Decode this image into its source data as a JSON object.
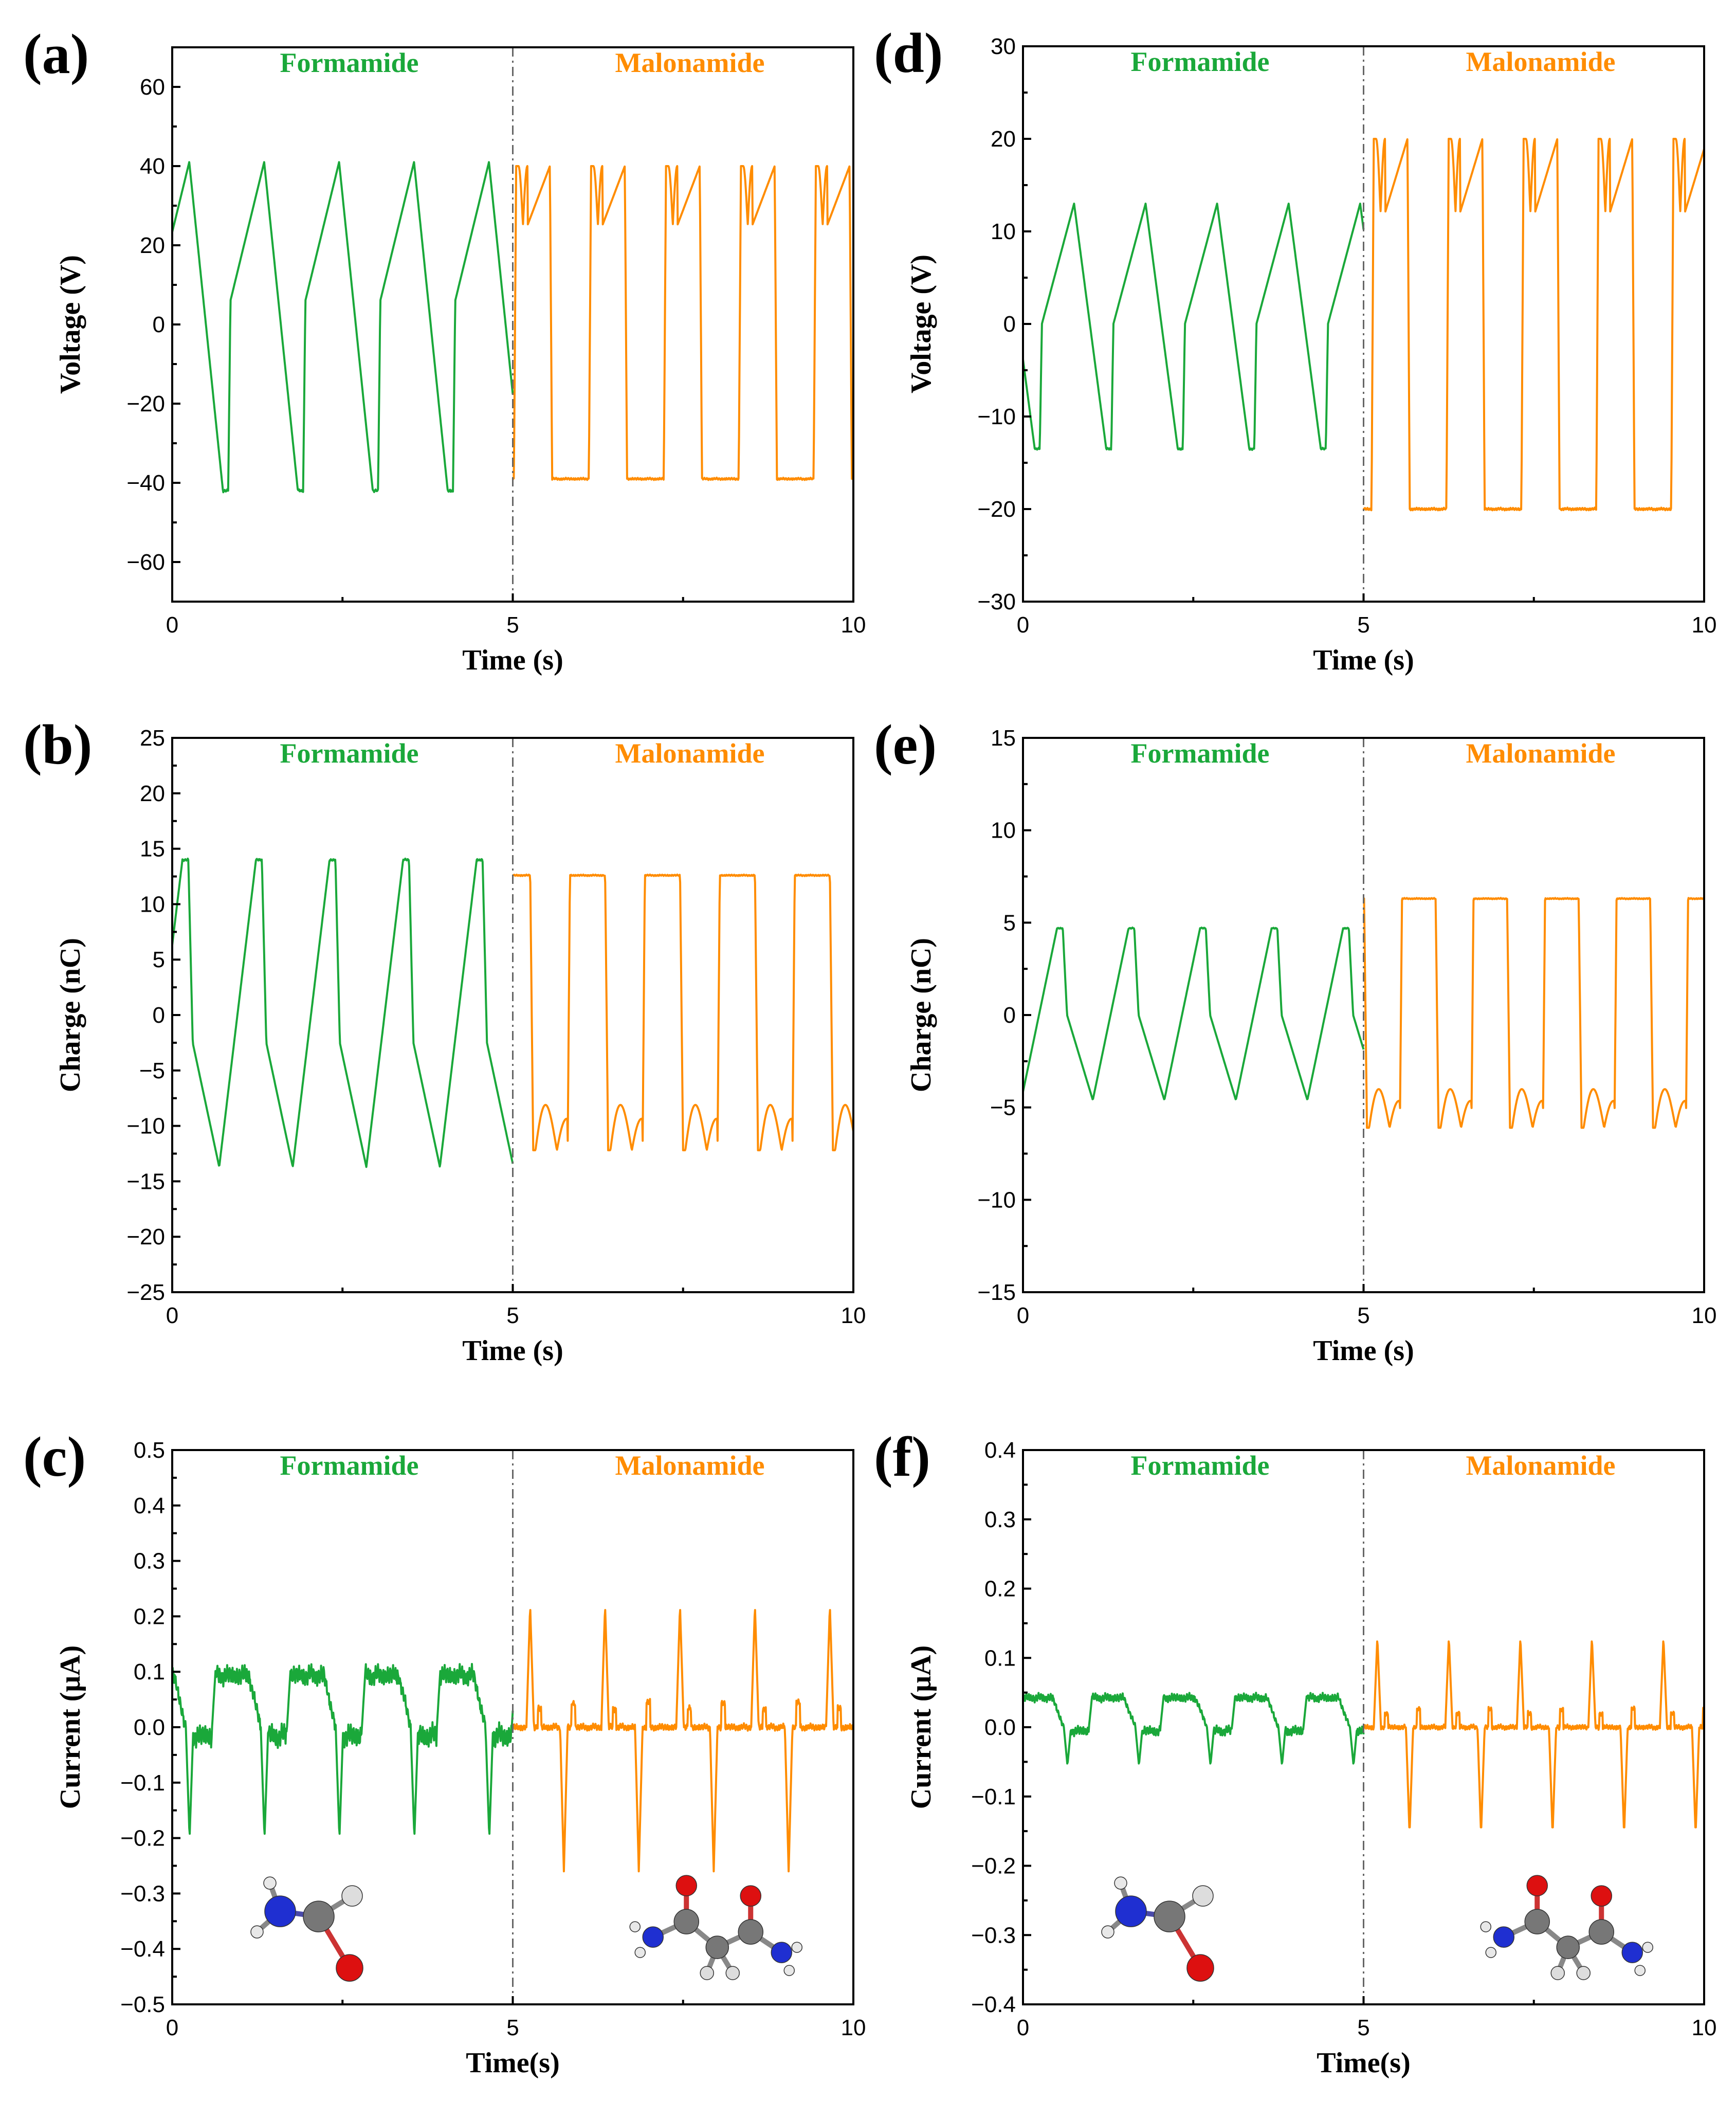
{
  "colors": {
    "formamide": "#1aa83a",
    "malonamide": "#ff8c00",
    "text": "#000000"
  },
  "chart_data": [
    {
      "type": "line",
      "panel": "(a)",
      "xlabel": "Time (s)",
      "ylabel": "Voltage (V)",
      "xlim": [
        0,
        10
      ],
      "ylim": [
        -70,
        70
      ],
      "xticks": [
        0,
        5,
        10
      ],
      "yticks": [
        -60,
        -40,
        -20,
        0,
        20,
        40,
        60
      ],
      "ytick_labels": [
        "−60",
        "−40",
        "−20",
        "0",
        "20",
        "40",
        "60"
      ],
      "divider_x": 5,
      "region_labels": [
        "Formamide",
        "Malonamide"
      ],
      "series": [
        {
          "name": "Formamide",
          "color": "formamide",
          "shape": "sawtooth",
          "x_range": [
            0,
            5
          ],
          "period": 1.1,
          "phase": 0.25,
          "high": 41,
          "low": -42,
          "step": 6
        },
        {
          "name": "Malonamide",
          "color": "malonamide",
          "shape": "square",
          "x_range": [
            5,
            10
          ],
          "period": 1.1,
          "phase": 5.05,
          "high": 40,
          "low": -39,
          "dip": 25
        }
      ]
    },
    {
      "type": "line",
      "panel": "(b)",
      "xlabel": "Time (s)",
      "ylabel": "Charge (nC)",
      "xlim": [
        0,
        10
      ],
      "ylim": [
        -25,
        25
      ],
      "xticks": [
        0,
        5,
        10
      ],
      "yticks": [
        -25,
        -20,
        -15,
        -10,
        -5,
        0,
        5,
        10,
        15,
        20,
        25
      ],
      "ytick_labels": [
        "−25",
        "−20",
        "−15",
        "−10",
        "−5",
        "0",
        "5",
        "10",
        "15",
        "20",
        "25"
      ],
      "divider_x": 5,
      "region_labels": [
        "Formamide",
        "Malonamide"
      ],
      "series": [
        {
          "name": "Formamide",
          "color": "formamide",
          "shape": "sawtooth-inv",
          "x_range": [
            0,
            5
          ],
          "period": 1.08,
          "phase": 0.15,
          "high": 14,
          "low": -13.7,
          "step": -2.5
        },
        {
          "name": "Malonamide",
          "color": "malonamide",
          "shape": "square-inv",
          "x_range": [
            5,
            10
          ],
          "period": 1.1,
          "phase": 5.3,
          "high": 12.6,
          "low": -12.2,
          "dip": -7.5
        }
      ]
    },
    {
      "type": "line",
      "panel": "(c)",
      "xlabel": "Time(s)",
      "ylabel": "Current (μA)",
      "xlim": [
        0,
        10
      ],
      "ylim": [
        -0.5,
        0.5
      ],
      "xticks": [
        0,
        5,
        10
      ],
      "yticks": [
        -0.5,
        -0.4,
        -0.3,
        -0.2,
        -0.1,
        0.0,
        0.1,
        0.2,
        0.3,
        0.4,
        0.5
      ],
      "ytick_labels": [
        "−0.5",
        "−0.4",
        "−0.3",
        "−0.2",
        "−0.1",
        "0.0",
        "0.1",
        "0.2",
        "0.3",
        "0.4",
        "0.5"
      ],
      "divider_x": 5,
      "region_labels": [
        "Formamide",
        "Malonamide"
      ],
      "molecules": [
        "formamide",
        "malonamide"
      ],
      "series": [
        {
          "name": "Formamide",
          "color": "formamide",
          "shape": "current-f",
          "x_range": [
            0,
            5
          ],
          "period": 1.1,
          "phase": 0.2,
          "high": 0.11,
          "low": -0.2
        },
        {
          "name": "Malonamide",
          "color": "malonamide",
          "shape": "current-m",
          "x_range": [
            5,
            10
          ],
          "period": 1.1,
          "phase": 5.2,
          "high": 0.22,
          "low": -0.26
        }
      ]
    },
    {
      "type": "line",
      "panel": "(d)",
      "xlabel": "Time (s)",
      "ylabel": "Voltage (V)",
      "xlim": [
        0,
        10
      ],
      "ylim": [
        -30,
        30
      ],
      "xticks": [
        0,
        5,
        10
      ],
      "yticks": [
        -30,
        -20,
        -10,
        0,
        10,
        20,
        30
      ],
      "ytick_labels": [
        "−30",
        "−20",
        "−10",
        "0",
        "10",
        "20",
        "30"
      ],
      "divider_x": 5,
      "region_labels": [
        "Formamide",
        "Malonamide"
      ],
      "series": [
        {
          "name": "Formamide",
          "color": "formamide",
          "shape": "sawtooth",
          "x_range": [
            0,
            5
          ],
          "period": 1.05,
          "phase": 0.75,
          "high": 13,
          "low": -13.5,
          "step": 0
        },
        {
          "name": "Malonamide",
          "color": "malonamide",
          "shape": "square",
          "x_range": [
            5,
            10
          ],
          "period": 1.1,
          "phase": 5.15,
          "high": 20,
          "low": -20,
          "dip": 12
        }
      ]
    },
    {
      "type": "line",
      "panel": "(e)",
      "xlabel": "Time (s)",
      "ylabel": "Charge (nC)",
      "xlim": [
        0,
        10
      ],
      "ylim": [
        -15,
        15
      ],
      "xticks": [
        0,
        5,
        10
      ],
      "yticks": [
        -15,
        -10,
        -5,
        0,
        5,
        10,
        15
      ],
      "ytick_labels": [
        "−15",
        "−10",
        "−5",
        "0",
        "5",
        "10",
        "15"
      ],
      "divider_x": 5,
      "region_labels": [
        "Formamide",
        "Malonamide"
      ],
      "series": [
        {
          "name": "Formamide",
          "color": "formamide",
          "shape": "sawtooth-inv",
          "x_range": [
            0,
            5
          ],
          "period": 1.05,
          "phase": 0.5,
          "high": 4.7,
          "low": -4.6,
          "step": 0
        },
        {
          "name": "Malonamide",
          "color": "malonamide",
          "shape": "square-inv",
          "x_range": [
            5,
            10
          ],
          "period": 1.05,
          "phase": 5.05,
          "high": 6.3,
          "low": -6.1,
          "dip": -3.7
        }
      ]
    },
    {
      "type": "line",
      "panel": "(f)",
      "xlabel": "Time(s)",
      "ylabel": "Current (μA)",
      "xlim": [
        0,
        10
      ],
      "ylim": [
        -0.4,
        0.4
      ],
      "xticks": [
        0,
        5,
        10
      ],
      "yticks": [
        -0.4,
        -0.3,
        -0.2,
        -0.1,
        0.0,
        0.1,
        0.2,
        0.3,
        0.4
      ],
      "ytick_labels": [
        "−0.4",
        "−0.3",
        "−0.2",
        "−0.1",
        "0.0",
        "0.1",
        "0.2",
        "0.3",
        "0.4"
      ],
      "divider_x": 5,
      "region_labels": [
        "Formamide",
        "Malonamide"
      ],
      "molecules": [
        "formamide",
        "malonamide"
      ],
      "series": [
        {
          "name": "Formamide",
          "color": "formamide",
          "shape": "current-f",
          "x_range": [
            0,
            5
          ],
          "period": 1.05,
          "phase": 0.6,
          "high": 0.05,
          "low": -0.055
        },
        {
          "name": "Malonamide",
          "color": "malonamide",
          "shape": "current-m",
          "x_range": [
            5,
            10
          ],
          "period": 1.05,
          "phase": 5.15,
          "high": 0.13,
          "low": -0.155
        }
      ]
    }
  ]
}
